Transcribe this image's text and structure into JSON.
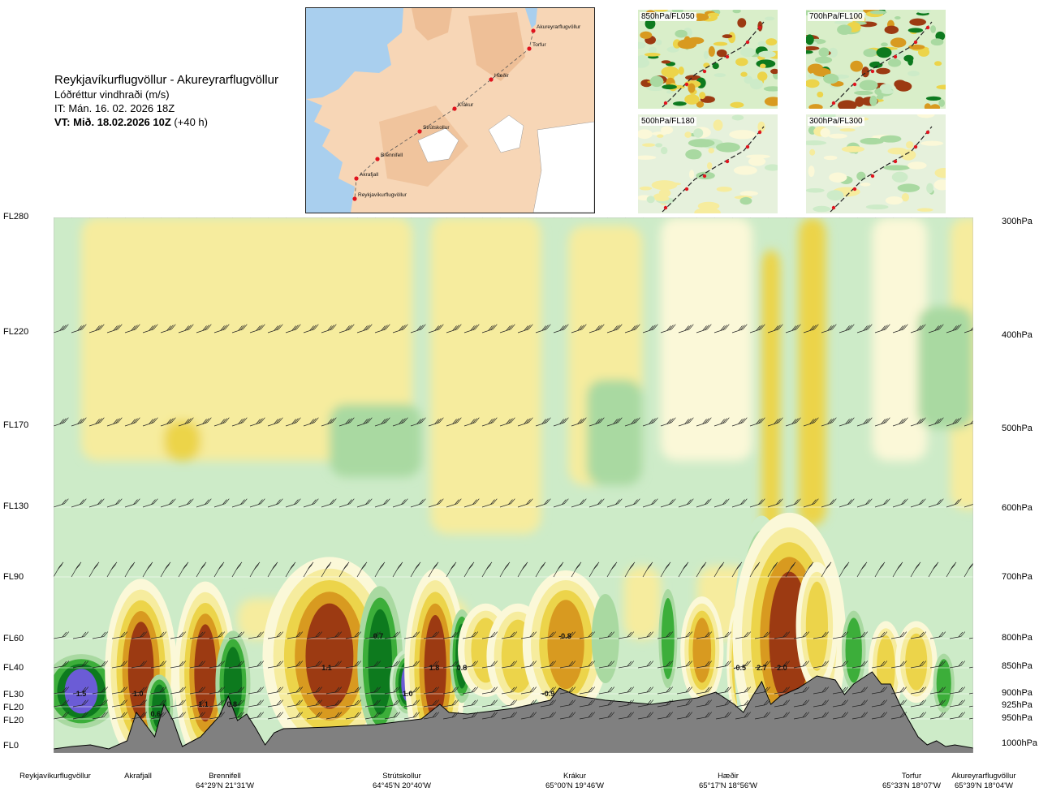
{
  "header": {
    "title": "Reykjavíkurflugvöllur - Akureyrarflugvöllur",
    "subtitle": "Lóðréttur vindhraði (m/s)",
    "init_time": "IT: Mán. 16. 02. 2026 18Z",
    "valid_prefix": "VT: Mið. 18.02.2026 10Z",
    "valid_suffix": "(+40 h)"
  },
  "map": {
    "places": [
      "Akureyrarflugvöllur",
      "Torfur",
      "Hæðir",
      "Krákur",
      "Strútskollur",
      "Brennifell",
      "Akrafjall",
      "Reykjavíkurflugvöllur"
    ],
    "colors": {
      "land": "#f4c9a4",
      "sea": "#a9cfee",
      "ice": "#ffffff",
      "route_point": "#e0141e"
    }
  },
  "mini_maps": [
    {
      "label": "850hPa/FL050"
    },
    {
      "label": "700hPa/FL100"
    },
    {
      "label": "500hPa/FL180"
    },
    {
      "label": "300hPa/FL300"
    }
  ],
  "chart_data": {
    "type": "heatmap",
    "title": "Reykjavíkurflugvöllur - Akureyrarflugvöllur",
    "variable": "Lóðréttur vindhraði (m/s)",
    "y_left_ticks": [
      "FL280",
      "FL220",
      "FL170",
      "FL130",
      "FL90",
      "FL60",
      "FL40",
      "FL30",
      "FL20",
      "FL20",
      "FL0"
    ],
    "y_right_ticks": [
      "300hPa",
      "400hPa",
      "500hPa",
      "600hPa",
      "700hPa",
      "800hPa",
      "850hPa",
      "900hPa",
      "925hPa",
      "950hPa",
      "1000hPa"
    ],
    "pressure_levels_hpa": [
      300,
      400,
      500,
      600,
      700,
      800,
      850,
      900,
      925,
      950,
      1000
    ],
    "x_distance_fraction_range": [
      0,
      1
    ],
    "waypoints": [
      {
        "name": "Reykjavíkurflugvöllur",
        "coord": "",
        "pos": 0.0
      },
      {
        "name": "Akrafjall",
        "coord": "",
        "pos": 0.09
      },
      {
        "name": "Brennifell",
        "coord": "64°29'N 21°31'W",
        "pos": 0.19
      },
      {
        "name": "Strútskollur",
        "coord": "64°45'N 20°40'W",
        "pos": 0.39
      },
      {
        "name": "Krákur",
        "coord": "65°00'N 19°46'W",
        "pos": 0.57
      },
      {
        "name": "Hæðir",
        "coord": "65°17'N 18°56'W",
        "pos": 0.76
      },
      {
        "name": "Torfur",
        "coord": "65°33'N 18°07'W",
        "pos": 0.94
      },
      {
        "name": "Akureyrarflugvöllur",
        "coord": "65°39'N 18°04'W",
        "pos": 0.99
      }
    ],
    "value_labels": [
      {
        "text": "1.5",
        "pos": 0.03,
        "p": 905
      },
      {
        "text": "1.0",
        "pos": 0.092,
        "p": 905
      },
      {
        "text": "0.6",
        "pos": 0.111,
        "p": 945
      },
      {
        "text": "1.1",
        "pos": 0.163,
        "p": 925
      },
      {
        "text": "0.8",
        "pos": 0.194,
        "p": 925
      },
      {
        "text": "1.1",
        "pos": 0.297,
        "p": 855
      },
      {
        "text": "0.7",
        "pos": 0.353,
        "p": 800
      },
      {
        "text": "1.8",
        "pos": 0.414,
        "p": 855
      },
      {
        "text": "0.8",
        "pos": 0.444,
        "p": 855
      },
      {
        "text": "1.0",
        "pos": 0.385,
        "p": 905
      },
      {
        "text": "-0.8",
        "pos": 0.556,
        "p": 800
      },
      {
        "text": "-0.9",
        "pos": 0.538,
        "p": 905
      },
      {
        "text": "-0.5",
        "pos": 0.746,
        "p": 855
      },
      {
        "text": "2.7",
        "pos": 0.77,
        "p": 855
      },
      {
        "text": "2.0",
        "pos": 0.792,
        "p": 855
      }
    ],
    "blobs": [
      {
        "pos": 0.03,
        "p": 895,
        "level": 5,
        "w": 0.018,
        "h": 55
      },
      {
        "pos": 0.095,
        "p": 855,
        "level": 4,
        "w": 0.014,
        "h": 120
      },
      {
        "pos": 0.115,
        "p": 925,
        "level": -3,
        "w": 0.008,
        "h": 55
      },
      {
        "pos": 0.165,
        "p": 860,
        "level": 4,
        "w": 0.012,
        "h": 120
      },
      {
        "pos": 0.195,
        "p": 880,
        "level": -3,
        "w": 0.01,
        "h": 90
      },
      {
        "pos": 0.3,
        "p": 830,
        "level": 4,
        "w": 0.026,
        "h": 130
      },
      {
        "pos": 0.355,
        "p": 840,
        "level": -3,
        "w": 0.013,
        "h": 130
      },
      {
        "pos": 0.385,
        "p": 880,
        "level": 5,
        "w": 0.007,
        "h": 45
      },
      {
        "pos": 0.415,
        "p": 850,
        "level": 4,
        "w": 0.012,
        "h": 130
      },
      {
        "pos": 0.444,
        "p": 830,
        "level": -3,
        "w": 0.007,
        "h": 80
      },
      {
        "pos": 0.47,
        "p": 820,
        "level": 2,
        "w": 0.016,
        "h": 80
      },
      {
        "pos": 0.505,
        "p": 830,
        "level": 2,
        "w": 0.018,
        "h": 90
      },
      {
        "pos": 0.557,
        "p": 810,
        "level": 3,
        "w": 0.02,
        "h": 110
      },
      {
        "pos": 0.6,
        "p": 800,
        "level": -1,
        "w": 0.015,
        "h": 110
      },
      {
        "pos": 0.668,
        "p": 800,
        "level": -2,
        "w": 0.007,
        "h": 100
      },
      {
        "pos": 0.705,
        "p": 820,
        "level": 3,
        "w": 0.01,
        "h": 80
      },
      {
        "pos": 0.746,
        "p": 840,
        "level": 3,
        "w": 0.006,
        "h": 90
      },
      {
        "pos": 0.77,
        "p": 805,
        "level": 5,
        "w": 0.011,
        "h": 165
      },
      {
        "pos": 0.8,
        "p": 800,
        "level": 4,
        "w": 0.022,
        "h": 165
      },
      {
        "pos": 0.83,
        "p": 780,
        "level": 2,
        "w": 0.012,
        "h": 110
      },
      {
        "pos": 0.87,
        "p": 820,
        "level": -2,
        "w": 0.009,
        "h": 80
      },
      {
        "pos": 0.905,
        "p": 850,
        "level": 2,
        "w": 0.01,
        "h": 80
      },
      {
        "pos": 0.938,
        "p": 840,
        "level": 2,
        "w": 0.012,
        "h": 70
      },
      {
        "pos": 0.968,
        "p": 880,
        "level": -2,
        "w": 0.008,
        "h": 60
      }
    ],
    "palette": {
      "strong_up": "#6b5cd6",
      "dark_green": "#0d7a1e",
      "green": "#3cae3a",
      "light_green": "#a9d9a1",
      "pale_green": "#cdebc8",
      "near_zero": "#fbf8d8",
      "pale_yellow": "#f6ec9e",
      "yellow": "#ecd44a",
      "orange": "#d89a20",
      "brown": "#9c3a12",
      "terrain": "#808080"
    }
  }
}
